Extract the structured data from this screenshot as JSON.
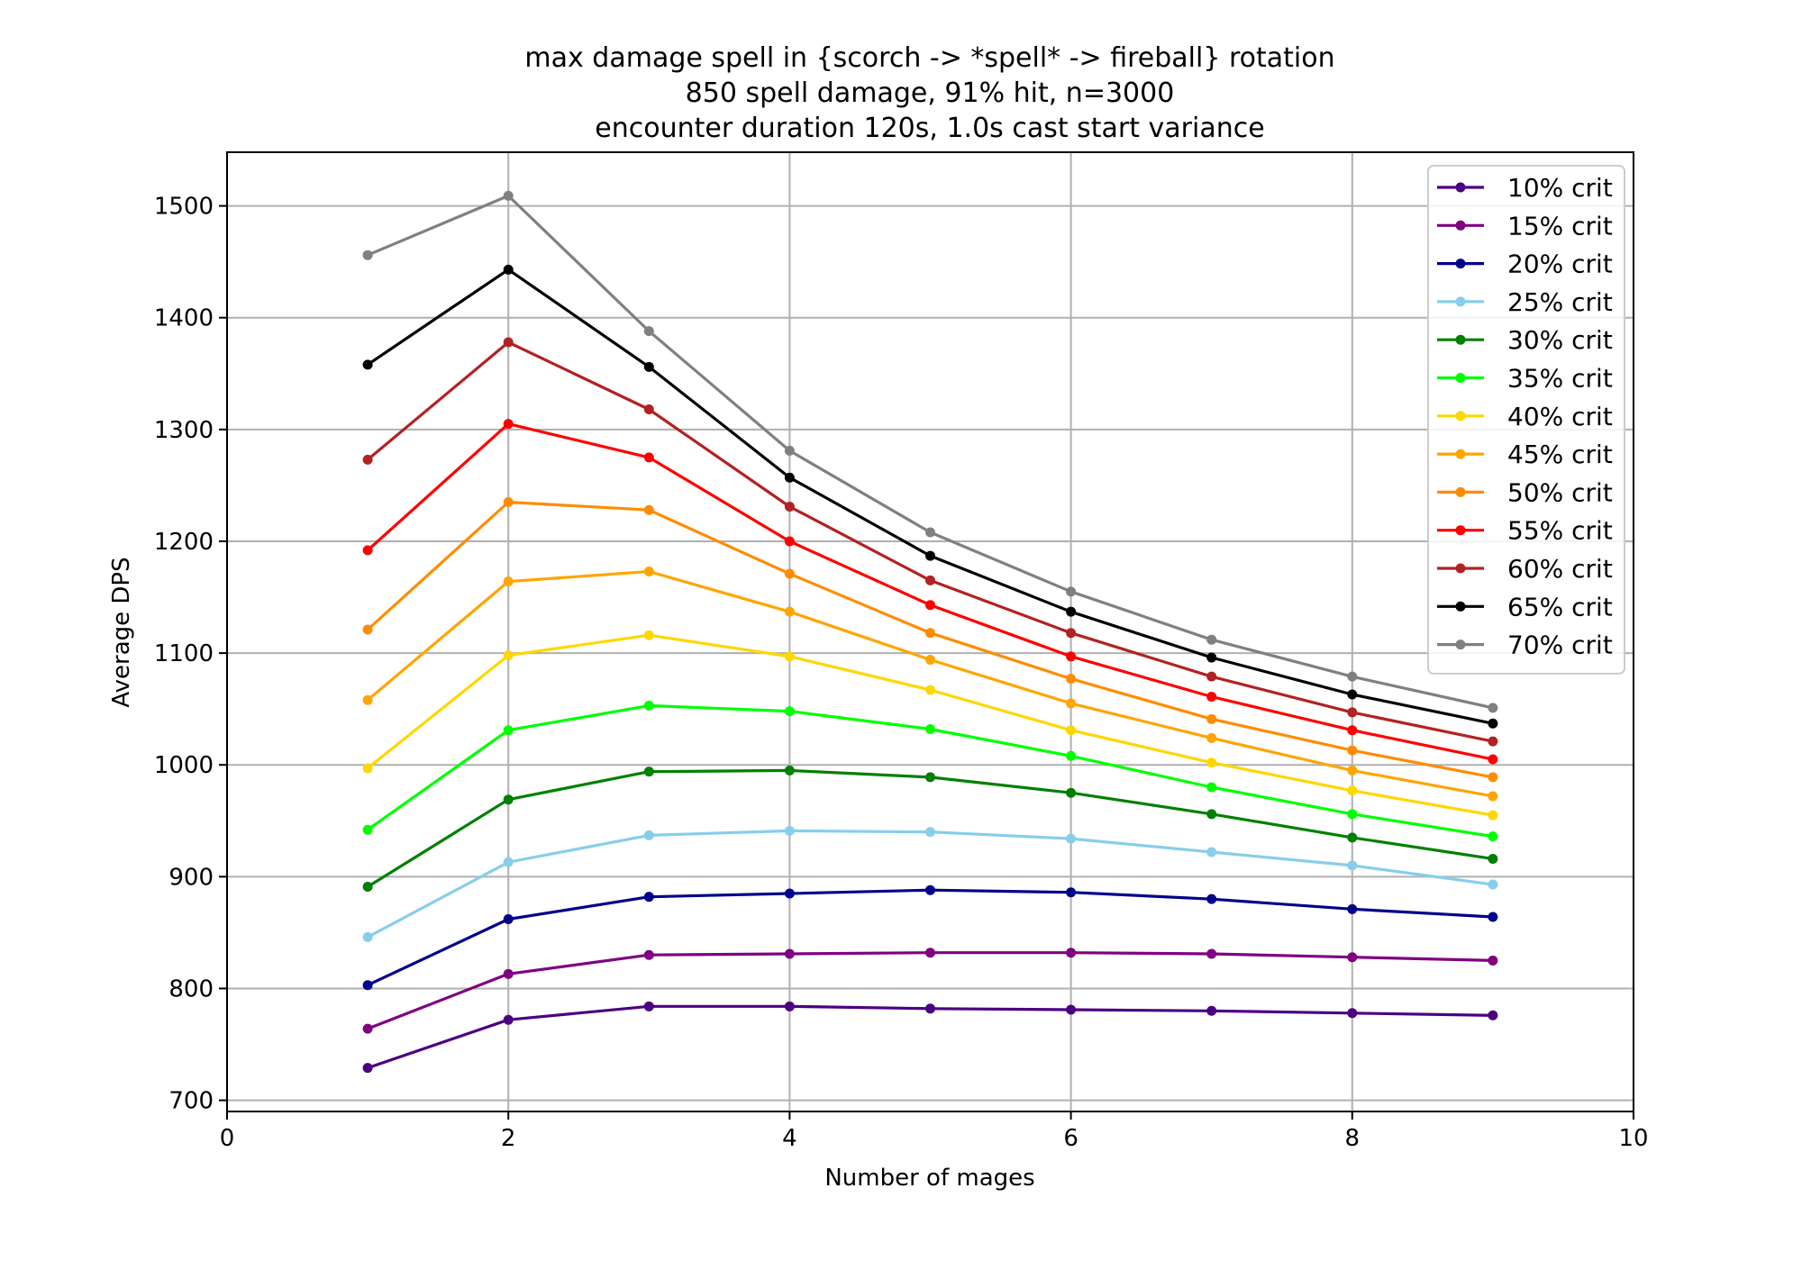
{
  "chart_data": {
    "type": "line",
    "title": [
      "max damage spell in {scorch -> *spell* -> fireball} rotation",
      "850  spell damage, 91% hit, n=3000",
      "encounter duration 120s, 1.0s cast start variance"
    ],
    "xlabel": "Number of mages",
    "ylabel": "Average DPS",
    "xlim": [
      0,
      10
    ],
    "ylim": [
      690,
      1548
    ],
    "xticks": [
      0,
      2,
      4,
      6,
      8,
      10
    ],
    "yticks": [
      700,
      800,
      900,
      1000,
      1100,
      1200,
      1300,
      1400,
      1500
    ],
    "grid": true,
    "legend_position": "top-right",
    "x": [
      1,
      2,
      3,
      4,
      5,
      6,
      7,
      8,
      9
    ],
    "series": [
      {
        "name": "10% crit",
        "color": "#4b0082",
        "values": [
          729,
          772,
          784,
          784,
          782,
          781,
          780,
          778,
          776
        ]
      },
      {
        "name": "15% crit",
        "color": "#800080",
        "values": [
          764,
          813,
          830,
          831,
          832,
          832,
          831,
          828,
          825
        ]
      },
      {
        "name": "20% crit",
        "color": "#00008b",
        "values": [
          803,
          862,
          882,
          885,
          888,
          886,
          880,
          871,
          864
        ]
      },
      {
        "name": "25% crit",
        "color": "#87ceeb",
        "values": [
          846,
          913,
          937,
          941,
          940,
          934,
          922,
          910,
          893
        ]
      },
      {
        "name": "30% crit",
        "color": "#008000",
        "values": [
          891,
          969,
          994,
          995,
          989,
          975,
          956,
          935,
          916
        ]
      },
      {
        "name": "35% crit",
        "color": "#00ff00",
        "values": [
          942,
          1031,
          1053,
          1048,
          1032,
          1008,
          980,
          956,
          936
        ]
      },
      {
        "name": "40% crit",
        "color": "#ffd700",
        "values": [
          997,
          1098,
          1116,
          1097,
          1067,
          1031,
          1002,
          977,
          955
        ]
      },
      {
        "name": "45% crit",
        "color": "#ffa500",
        "values": [
          1058,
          1164,
          1173,
          1137,
          1094,
          1055,
          1024,
          995,
          972
        ]
      },
      {
        "name": "50% crit",
        "color": "#ff8c00",
        "values": [
          1121,
          1235,
          1228,
          1171,
          1118,
          1077,
          1041,
          1013,
          989
        ]
      },
      {
        "name": "55% crit",
        "color": "#ff0000",
        "values": [
          1192,
          1305,
          1275,
          1200,
          1143,
          1097,
          1061,
          1031,
          1005
        ]
      },
      {
        "name": "60% crit",
        "color": "#b22222",
        "values": [
          1273,
          1378,
          1318,
          1231,
          1165,
          1118,
          1079,
          1047,
          1021
        ]
      },
      {
        "name": "65% crit",
        "color": "#000000",
        "values": [
          1358,
          1443,
          1356,
          1257,
          1187,
          1137,
          1096,
          1063,
          1037
        ]
      },
      {
        "name": "70% crit",
        "color": "#808080",
        "values": [
          1456,
          1509,
          1388,
          1281,
          1208,
          1155,
          1112,
          1079,
          1051
        ]
      }
    ]
  }
}
